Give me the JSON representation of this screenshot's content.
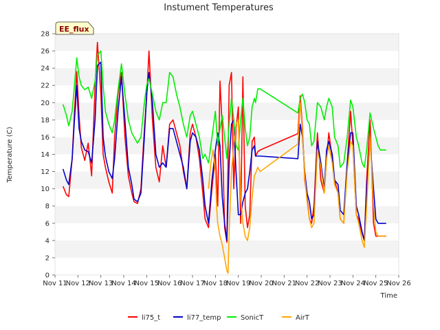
{
  "chart_data": {
    "type": "line",
    "title": "Instument Temperatures",
    "xlabel": "Time",
    "ylabel": "Temperature (C)",
    "badge": "EE_flux",
    "xlim": [
      11,
      26
    ],
    "ylim": [
      0,
      28
    ],
    "x_ticks": [
      11,
      12,
      13,
      14,
      15,
      16,
      17,
      18,
      19,
      20,
      21,
      22,
      23,
      24,
      25,
      26
    ],
    "x_tick_labels": [
      "Nov 11",
      "Nov 12",
      "Nov 13",
      "Nov 14",
      "Nov 15",
      "Nov 16",
      "Nov 17",
      "Nov 18",
      "Nov 19",
      "Nov 20",
      "Nov 21",
      "Nov 22",
      "Nov 23",
      "Nov 24",
      "Nov 25",
      "Nov 26"
    ],
    "y_ticks": [
      0,
      2,
      4,
      6,
      8,
      10,
      12,
      14,
      16,
      18,
      20,
      22,
      24,
      26,
      28
    ],
    "y_tick_labels": [
      "0",
      "2",
      "4",
      "6",
      "8",
      "10",
      "12",
      "14",
      "16",
      "18",
      "20",
      "22",
      "24",
      "26",
      "28"
    ],
    "grid": "horizontal bands",
    "legend_position": "bottom",
    "series": [
      {
        "name": "li75_t",
        "color": "#ff0000",
        "x": [
          11.35,
          11.5,
          11.6,
          11.75,
          11.85,
          11.95,
          12.05,
          12.15,
          12.3,
          12.45,
          12.6,
          12.75,
          12.85,
          13.0,
          13.1,
          13.2,
          13.35,
          13.5,
          13.6,
          13.75,
          13.9,
          14.05,
          14.2,
          14.35,
          14.45,
          14.6,
          14.75,
          14.9,
          15.0,
          15.1,
          15.25,
          15.4,
          15.55,
          15.7,
          15.85,
          16.0,
          16.15,
          16.3,
          16.45,
          16.6,
          16.75,
          16.9,
          17.0,
          17.15,
          17.3,
          17.45,
          17.55,
          17.7,
          17.85,
          18.0,
          18.1,
          18.2,
          18.3,
          18.4,
          18.5,
          18.6,
          18.7,
          18.8,
          18.9,
          19.0,
          19.1,
          19.2,
          19.3,
          19.4,
          19.5,
          19.6,
          19.7,
          19.75,
          19.85,
          19.95,
          21.6,
          21.7,
          21.8,
          21.9,
          22.0,
          22.1,
          22.2,
          22.3,
          22.45,
          22.6,
          22.75,
          22.85,
          22.95,
          23.1,
          23.2,
          23.35,
          23.45,
          23.6,
          23.75,
          23.9,
          24.0,
          24.15,
          24.25,
          24.4,
          24.5,
          24.6,
          24.75,
          24.9,
          25.0,
          25.1,
          25.2,
          25.35,
          25.45
        ],
        "y": [
          10.3,
          9.3,
          9.1,
          13.5,
          19.0,
          23.6,
          18.5,
          14.8,
          13.3,
          15.3,
          11.5,
          22.0,
          27.0,
          21.0,
          14.0,
          12.5,
          10.8,
          9.5,
          16.0,
          21.0,
          23.5,
          16.0,
          11.5,
          9.5,
          8.5,
          8.3,
          10.0,
          17.0,
          20.5,
          26.0,
          18.0,
          12.5,
          10.8,
          15.0,
          12.5,
          17.5,
          18.0,
          16.5,
          15.0,
          12.0,
          10.0,
          16.5,
          17.5,
          16.0,
          13.5,
          9.5,
          6.5,
          5.5,
          10.0,
          14.0,
          8.0,
          22.5,
          17.0,
          5.5,
          3.8,
          22.0,
          23.5,
          10.0,
          17.0,
          19.5,
          6.0,
          23.0,
          8.0,
          5.5,
          7.0,
          15.5,
          16.0,
          13.8,
          14.3,
          14.5,
          16.4,
          20.8,
          17.0,
          11.0,
          9.0,
          6.5,
          6.0,
          8.0,
          16.5,
          11.0,
          9.5,
          13.5,
          16.5,
          13.5,
          11.0,
          9.5,
          6.5,
          6.0,
          13.0,
          19.0,
          15.0,
          7.0,
          6.5,
          4.8,
          4.0,
          11.0,
          18.0,
          6.0,
          4.5,
          4.5,
          4.5,
          4.5,
          4.5
        ]
      },
      {
        "name": "li77_temp",
        "color": "#0000cc",
        "x": [
          11.35,
          11.5,
          11.6,
          11.75,
          11.85,
          11.95,
          12.05,
          12.15,
          12.3,
          12.45,
          12.6,
          12.75,
          12.85,
          13.0,
          13.1,
          13.2,
          13.35,
          13.5,
          13.6,
          13.75,
          13.9,
          14.05,
          14.2,
          14.35,
          14.45,
          14.6,
          14.75,
          14.9,
          15.0,
          15.1,
          15.25,
          15.4,
          15.55,
          15.7,
          15.85,
          16.0,
          16.15,
          16.3,
          16.45,
          16.6,
          16.75,
          16.9,
          17.0,
          17.15,
          17.3,
          17.45,
          17.55,
          17.7,
          17.85,
          18.0,
          18.1,
          18.2,
          18.3,
          18.4,
          18.5,
          18.6,
          18.7,
          18.8,
          18.9,
          19.0,
          19.1,
          19.2,
          19.3,
          19.4,
          19.5,
          19.6,
          19.7,
          19.75,
          19.85,
          19.95,
          21.6,
          21.7,
          21.8,
          21.9,
          22.0,
          22.1,
          22.2,
          22.3,
          22.45,
          22.6,
          22.75,
          22.85,
          22.95,
          23.1,
          23.2,
          23.35,
          23.45,
          23.6,
          23.75,
          23.9,
          24.0,
          24.15,
          24.25,
          24.4,
          24.5,
          24.6,
          24.75,
          24.9,
          25.0,
          25.1,
          25.2,
          25.35,
          25.45
        ],
        "y": [
          12.3,
          11.0,
          10.5,
          13.5,
          18.0,
          22.0,
          17.0,
          15.5,
          14.5,
          14.3,
          13.0,
          18.0,
          24.3,
          24.7,
          16.0,
          13.8,
          12.0,
          11.2,
          13.5,
          19.0,
          23.0,
          18.0,
          12.5,
          10.5,
          8.8,
          8.5,
          9.5,
          16.0,
          21.0,
          23.5,
          20.0,
          14.0,
          12.5,
          13.0,
          12.5,
          17.0,
          17.0,
          15.5,
          14.0,
          12.5,
          10.0,
          15.5,
          16.5,
          16.0,
          14.5,
          11.0,
          8.0,
          6.0,
          11.0,
          14.5,
          16.5,
          15.0,
          9.0,
          6.0,
          4.0,
          13.0,
          17.5,
          18.0,
          12.0,
          7.0,
          7.0,
          8.5,
          9.5,
          10.0,
          12.0,
          14.5,
          15.0,
          13.8,
          13.8,
          13.8,
          13.5,
          17.5,
          16.0,
          12.0,
          9.5,
          8.5,
          6.5,
          7.0,
          15.5,
          13.0,
          10.0,
          14.5,
          15.5,
          14.0,
          11.0,
          10.5,
          7.5,
          7.0,
          13.0,
          16.5,
          16.5,
          8.0,
          7.0,
          5.0,
          4.0,
          10.0,
          15.5,
          10.0,
          6.5,
          6.0,
          6.0,
          6.0,
          6.0
        ]
      },
      {
        "name": "SonicT",
        "color": "#00ee00",
        "x": [
          11.35,
          11.5,
          11.6,
          11.75,
          11.85,
          11.95,
          12.05,
          12.15,
          12.3,
          12.45,
          12.6,
          12.75,
          12.85,
          13.0,
          13.1,
          13.2,
          13.35,
          13.5,
          13.6,
          13.75,
          13.9,
          14.05,
          14.2,
          14.35,
          14.45,
          14.6,
          14.75,
          14.9,
          15.0,
          15.1,
          15.25,
          15.4,
          15.55,
          15.7,
          15.85,
          16.0,
          16.15,
          16.3,
          16.45,
          16.6,
          16.75,
          16.9,
          17.0,
          17.15,
          17.3,
          17.45,
          17.55,
          17.7,
          17.85,
          18.0,
          18.1,
          18.2,
          18.3,
          18.4,
          18.5,
          18.6,
          18.7,
          18.8,
          18.9,
          19.0,
          19.1,
          19.2,
          19.3,
          19.4,
          19.5,
          19.6,
          19.7,
          19.75,
          19.85,
          19.95,
          21.6,
          21.7,
          21.8,
          21.9,
          22.0,
          22.1,
          22.2,
          22.3,
          22.45,
          22.6,
          22.75,
          22.85,
          22.95,
          23.1,
          23.2,
          23.35,
          23.45,
          23.6,
          23.75,
          23.9,
          24.0,
          24.15,
          24.25,
          24.4,
          24.5,
          24.6,
          24.75,
          24.9,
          25.0,
          25.1,
          25.2,
          25.35,
          25.45
        ],
        "y": [
          19.8,
          18.5,
          17.3,
          19.0,
          22.0,
          25.2,
          23.0,
          22.0,
          21.5,
          21.8,
          20.5,
          22.5,
          25.5,
          26.0,
          22.0,
          19.0,
          17.5,
          16.5,
          18.0,
          21.5,
          24.5,
          21.0,
          18.0,
          16.5,
          16.0,
          15.3,
          16.0,
          20.0,
          22.0,
          22.8,
          21.0,
          19.0,
          18.0,
          20.0,
          20.0,
          23.5,
          23.0,
          21.0,
          19.5,
          17.5,
          16.0,
          18.5,
          19.0,
          17.5,
          16.0,
          13.5,
          14.0,
          13.0,
          16.0,
          19.0,
          15.0,
          17.0,
          18.5,
          16.0,
          13.5,
          17.5,
          20.5,
          18.0,
          15.0,
          14.5,
          18.0,
          20.5,
          17.0,
          15.0,
          16.0,
          19.5,
          20.5,
          20.0,
          21.6,
          21.6,
          18.8,
          20.5,
          21.0,
          20.0,
          18.0,
          17.5,
          15.0,
          15.5,
          20.0,
          19.5,
          18.0,
          19.5,
          20.5,
          19.5,
          16.0,
          15.0,
          12.5,
          13.0,
          16.0,
          20.3,
          19.5,
          16.0,
          15.0,
          13.0,
          12.5,
          14.5,
          18.8,
          17.0,
          16.0,
          15.0,
          14.5,
          14.5,
          14.5
        ]
      },
      {
        "name": "AirT",
        "color": "#ffa500",
        "x": [
          17.7,
          17.8,
          17.9,
          18.0,
          18.05,
          18.1,
          18.2,
          18.3,
          18.4,
          18.5,
          18.55,
          18.6,
          18.7,
          18.8,
          18.9,
          19.0,
          19.1,
          19.2,
          19.3,
          19.4,
          19.5,
          19.6,
          19.7,
          19.75,
          19.85,
          19.95,
          21.6,
          21.7,
          21.8,
          21.9,
          22.0,
          22.1,
          22.2,
          22.3,
          22.45,
          22.6,
          22.75,
          22.85,
          22.95,
          23.1,
          23.2,
          23.35,
          23.45,
          23.6,
          23.75,
          23.9,
          24.0,
          24.15,
          24.25,
          24.4,
          24.5,
          24.6,
          24.75,
          24.9,
          25.0,
          25.1,
          25.2,
          25.35,
          25.45
        ],
        "y": [
          10.0,
          13.0,
          14.5,
          12.0,
          8.0,
          6.0,
          4.5,
          3.5,
          2.0,
          0.5,
          0.2,
          5.0,
          12.0,
          15.0,
          17.5,
          18.0,
          9.0,
          6.0,
          4.5,
          4.0,
          5.5,
          9.0,
          11.5,
          11.8,
          12.5,
          12.0,
          15.2,
          20.0,
          16.5,
          11.5,
          8.5,
          6.5,
          5.5,
          6.0,
          14.5,
          12.5,
          9.5,
          13.5,
          15.0,
          13.0,
          10.5,
          9.5,
          6.5,
          6.0,
          12.0,
          15.5,
          15.0,
          7.0,
          6.0,
          4.0,
          3.2,
          8.0,
          16.0,
          8.0,
          5.0,
          4.5,
          4.5,
          4.5,
          4.5
        ]
      }
    ]
  }
}
